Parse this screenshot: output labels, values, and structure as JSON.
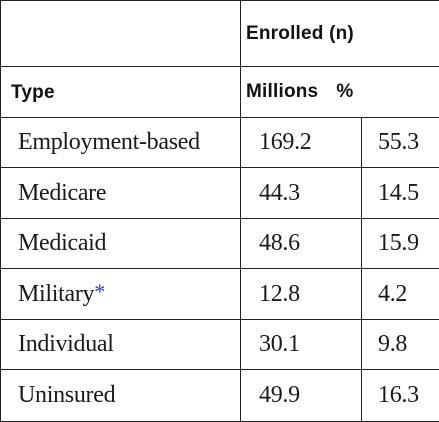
{
  "table": {
    "group_header": "Enrolled (n)",
    "columns": {
      "type": "Type",
      "millions": "Millions",
      "percent": "%"
    },
    "rows": [
      {
        "type": "Employment-based",
        "marker": "",
        "millions": "169.2",
        "percent": "55.3"
      },
      {
        "type": "Medicare",
        "marker": "",
        "millions": "44.3",
        "percent": "14.5"
      },
      {
        "type": "Medicaid",
        "marker": "",
        "millions": "48.6",
        "percent": "15.9"
      },
      {
        "type": "Military",
        "marker": "*",
        "millions": "12.8",
        "percent": "4.2"
      },
      {
        "type": "Individual",
        "marker": "",
        "millions": "30.1",
        "percent": "9.8"
      },
      {
        "type": "Uninsured",
        "marker": "",
        "millions": "49.9",
        "percent": "16.3"
      }
    ]
  },
  "colors": {
    "border": "#222222",
    "text": "#1a1a1a",
    "footnote_marker": "#2e3bd1"
  }
}
